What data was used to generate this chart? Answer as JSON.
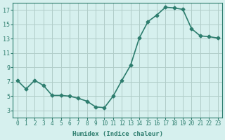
{
  "x": [
    0,
    1,
    2,
    3,
    4,
    5,
    6,
    7,
    8,
    9,
    10,
    11,
    12,
    13,
    14,
    15,
    16,
    17,
    18,
    19,
    20,
    21,
    22,
    23
  ],
  "y": [
    7.2,
    6.0,
    7.2,
    6.5,
    5.1,
    5.1,
    5.0,
    4.7,
    4.3,
    3.5,
    3.4,
    5.0,
    7.2,
    9.3,
    13.1,
    15.4,
    16.3,
    17.4,
    17.3,
    17.1,
    14.4,
    13.4,
    13.3,
    13.1
  ],
  "xlim": [
    -0.5,
    23.5
  ],
  "ylim": [
    2,
    18
  ],
  "yticks": [
    3,
    5,
    7,
    9,
    11,
    13,
    15,
    17
  ],
  "xticks": [
    0,
    1,
    2,
    3,
    4,
    5,
    6,
    7,
    8,
    9,
    10,
    11,
    12,
    13,
    14,
    15,
    16,
    17,
    18,
    19,
    20,
    21,
    22,
    23
  ],
  "xlabel": "Humidex (Indice chaleur)",
  "line_color": "#2d7d6e",
  "marker": "D",
  "marker_size": 2.5,
  "bg_color": "#d6f0ee",
  "grid_color": "#b0ccc8",
  "font_color": "#2d7d6e",
  "linewidth": 1.2
}
